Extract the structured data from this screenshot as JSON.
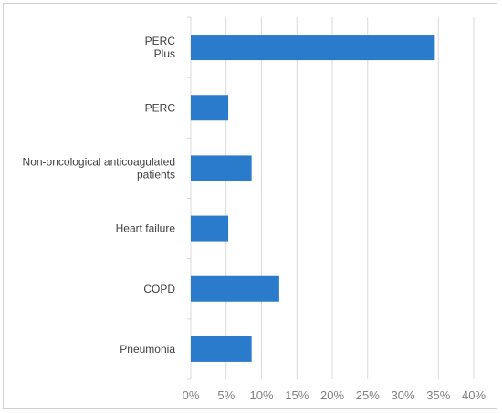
{
  "chart_data": {
    "type": "bar",
    "orientation": "horizontal",
    "categories": [
      [
        "PERC",
        "Plus"
      ],
      [
        "PERC"
      ],
      [
        "Non-oncological anticoagulated",
        "patients"
      ],
      [
        "Heart failure"
      ],
      [
        "COPD"
      ],
      [
        "Pneumonia"
      ]
    ],
    "values": [
      34.5,
      5.3,
      8.6,
      5.3,
      12.5,
      8.6
    ],
    "value_unit": "%",
    "xlim": [
      0,
      40
    ],
    "xticks": [
      "0%",
      "5%",
      "10%",
      "15%",
      "20%",
      "25%",
      "30%",
      "35%",
      "40%"
    ],
    "grid": "vertical",
    "legend": "none",
    "title": "",
    "xlabel": "",
    "ylabel": "",
    "bar_color": "#2b7bcd",
    "grid_color": "#d9d9d9"
  }
}
